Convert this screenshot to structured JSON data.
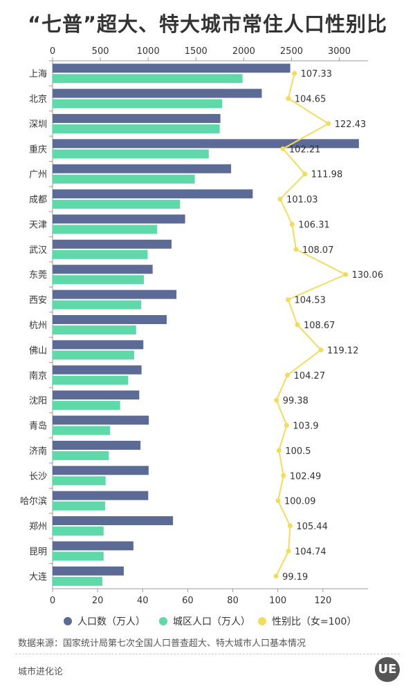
{
  "title": "“七普”超大、特大城市常住人口性别比",
  "chart_data": {
    "type": "bar",
    "orientation": "horizontal",
    "title": "“七普”超大、特大城市常住人口性别比",
    "categories": [
      "上海",
      "北京",
      "深圳",
      "重庆",
      "广州",
      "成都",
      "天津",
      "武汉",
      "东莞",
      "西安",
      "杭州",
      "佛山",
      "南京",
      "沈阳",
      "青岛",
      "济南",
      "长沙",
      "哈尔滨",
      "郑州",
      "昆明",
      "大连"
    ],
    "top_axis": {
      "range": [
        0,
        3300
      ],
      "ticks": [
        0,
        500,
        1000,
        1500,
        2000,
        2500,
        3000
      ]
    },
    "bottom_axis": {
      "range": [
        0,
        140
      ],
      "ticks": [
        0,
        20,
        40,
        60,
        80,
        100,
        120
      ]
    },
    "series": [
      {
        "name": "人口数（万人）",
        "type": "bar",
        "axis": "top",
        "color": "#5b6b96",
        "values": [
          2487,
          2189,
          1756,
          3205,
          1868,
          2094,
          1387,
          1245,
          1047,
          1296,
          1194,
          950,
          931,
          907,
          1007,
          920,
          1005,
          1001,
          1260,
          846,
          745
        ]
      },
      {
        "name": "城区人口（万人）",
        "type": "bar",
        "axis": "top",
        "color": "#5fd9aa",
        "values": [
          1987,
          1775,
          1749,
          1634,
          1488,
          1334,
          1093,
          995,
          956,
          928,
          874,
          854,
          791,
          707,
          601,
          588,
          555,
          550,
          534,
          534,
          521
        ]
      },
      {
        "name": "性别比（女=100）",
        "type": "line",
        "axis": "bottom",
        "color": "#f3db5e",
        "values": [
          107.33,
          104.65,
          122.43,
          102.21,
          111.98,
          101.03,
          106.31,
          108.07,
          130.06,
          104.53,
          108.67,
          119.12,
          104.27,
          99.38,
          103.9,
          100.5,
          102.49,
          100.09,
          105.44,
          104.74,
          99.19
        ],
        "labels": [
          "107.33",
          "104.65",
          "122.43",
          "102.21",
          "111.98",
          "101.03",
          "106.31",
          "108.07",
          "130.06",
          "104.53",
          "108.67",
          "119.12",
          "104.27",
          "99.38",
          "103.9",
          "100.5",
          "102.49",
          "100.09",
          "105.44",
          "104.74",
          "99.19"
        ]
      }
    ],
    "legend_position": "bottom"
  },
  "legend": [
    {
      "label": "人口数（万人）",
      "color": "#5b6b96"
    },
    {
      "label": "城区人口（万人）",
      "color": "#5fd9aa"
    },
    {
      "label": "性别比（女=100）",
      "color": "#f3db5e"
    }
  ],
  "source": "数据来源：国家统计局第七次全国人口普查超大、特大城市人口基本情况",
  "brand": "城市进化论",
  "logo_text": "UE"
}
